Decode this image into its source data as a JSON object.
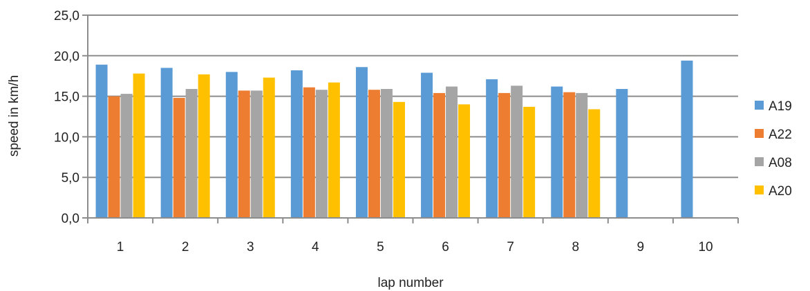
{
  "chart_data": {
    "type": "bar",
    "categories": [
      "1",
      "2",
      "3",
      "4",
      "5",
      "6",
      "7",
      "8",
      "9",
      "10"
    ],
    "series": [
      {
        "name": "A19",
        "color": "#5b9bd5",
        "values": [
          18.9,
          18.5,
          18.0,
          18.2,
          18.6,
          17.9,
          17.1,
          16.2,
          15.9,
          19.4
        ]
      },
      {
        "name": "A22",
        "color": "#ed7d31",
        "values": [
          15.0,
          14.8,
          15.7,
          16.1,
          15.8,
          15.4,
          15.4,
          15.5,
          null,
          null
        ]
      },
      {
        "name": "A08",
        "color": "#a5a5a5",
        "values": [
          15.3,
          15.9,
          15.7,
          15.8,
          15.9,
          16.2,
          16.3,
          15.4,
          null,
          null
        ]
      },
      {
        "name": "A20",
        "color": "#ffc000",
        "values": [
          17.8,
          17.7,
          17.3,
          16.7,
          14.3,
          14.0,
          13.7,
          13.4,
          null,
          null
        ]
      }
    ],
    "xlabel": "lap number",
    "ylabel": "speed in km/h",
    "ylim": [
      0,
      25
    ],
    "yticks": [
      "0,0",
      "5,0",
      "10,0",
      "15,0",
      "20,0",
      "25,0"
    ],
    "grid": true,
    "legend_position": "right"
  }
}
